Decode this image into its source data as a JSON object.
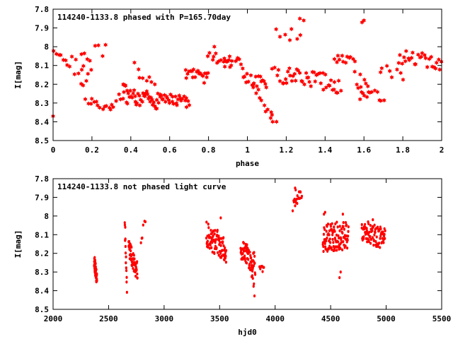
{
  "figure": {
    "background": "#ffffff",
    "point_color": "#ff0000"
  },
  "chart_data": [
    {
      "type": "scatter",
      "title": "114240-1133.8 phased with P=165.70day",
      "xlabel": "phase",
      "ylabel": "I[mag]",
      "xlim": [
        0,
        2
      ],
      "ylim": [
        8.5,
        7.8
      ],
      "y_inverted": true,
      "xticks": [
        "0",
        "0.2",
        "0.4",
        "0.6",
        "0.8",
        "1",
        "1.2",
        "1.4",
        "1.6",
        "1.8",
        "2"
      ],
      "yticks": [
        "7.8",
        "7.9",
        "8",
        "8.1",
        "8.2",
        "8.3",
        "8.4",
        "8.5"
      ],
      "grid": false,
      "legend": "none",
      "marker": "star",
      "color": "#ff0000",
      "segments": [
        {
          "x0": 0.0,
          "x1": 0.07,
          "y0": 8.04,
          "y1": 8.08,
          "n": 6,
          "amp": 0.03
        },
        {
          "x0": 0.07,
          "x1": 0.18,
          "y0": 8.08,
          "y1": 8.15,
          "n": 10,
          "amp": 0.05
        },
        {
          "x0": 0.15,
          "x1": 0.2,
          "y0": 8.03,
          "y1": 8.1,
          "n": 5,
          "amp": 0.03
        },
        {
          "x0": 0.22,
          "x1": 0.25,
          "y0": 7.99,
          "y1": 8.03,
          "n": 3,
          "amp": 0.02
        },
        {
          "x0": 0.14,
          "x1": 0.2,
          "y0": 8.2,
          "y1": 8.3,
          "n": 5,
          "amp": 0.03
        },
        {
          "x0": 0.2,
          "x1": 0.3,
          "y0": 8.3,
          "y1": 8.33,
          "n": 10,
          "amp": 0.02
        },
        {
          "x0": 0.3,
          "x1": 0.38,
          "y0": 8.3,
          "y1": 8.25,
          "n": 8,
          "amp": 0.03
        },
        {
          "x0": 0.36,
          "x1": 0.55,
          "y0": 8.25,
          "y1": 8.29,
          "n": 42,
          "amp": 0.05
        },
        {
          "x0": 0.42,
          "x1": 0.52,
          "y0": 8.12,
          "y1": 8.18,
          "n": 8,
          "amp": 0.04
        },
        {
          "x0": 0.55,
          "x1": 0.7,
          "y0": 8.27,
          "y1": 8.3,
          "n": 28,
          "amp": 0.03
        },
        {
          "x0": 0.68,
          "x1": 0.8,
          "y0": 8.14,
          "y1": 8.17,
          "n": 20,
          "amp": 0.03
        },
        {
          "x0": 0.8,
          "x1": 0.92,
          "y0": 8.03,
          "y1": 8.1,
          "n": 14,
          "amp": 0.03
        },
        {
          "x0": 0.88,
          "x1": 0.98,
          "y0": 8.07,
          "y1": 8.1,
          "n": 10,
          "amp": 0.03
        },
        {
          "x0": 0.98,
          "x1": 1.1,
          "y0": 8.17,
          "y1": 8.19,
          "n": 18,
          "amp": 0.03
        },
        {
          "x0": 1.03,
          "x1": 1.13,
          "y0": 8.2,
          "y1": 8.38,
          "n": 10,
          "amp": 0.03
        },
        {
          "x0": 1.13,
          "x1": 1.2,
          "y0": 8.12,
          "y1": 8.18,
          "n": 8,
          "amp": 0.04
        },
        {
          "x0": 1.15,
          "x1": 1.27,
          "y0": 7.9,
          "y1": 7.95,
          "n": 7,
          "amp": 0.04
        },
        {
          "x0": 1.2,
          "x1": 1.48,
          "y0": 8.14,
          "y1": 8.2,
          "n": 40,
          "amp": 0.05
        },
        {
          "x0": 1.45,
          "x1": 1.55,
          "y0": 8.05,
          "y1": 8.08,
          "n": 12,
          "amp": 0.03
        },
        {
          "x0": 1.55,
          "x1": 1.62,
          "y0": 8.15,
          "y1": 8.25,
          "n": 8,
          "amp": 0.05
        },
        {
          "x0": 1.58,
          "x1": 1.7,
          "y0": 8.22,
          "y1": 8.28,
          "n": 12,
          "amp": 0.04
        },
        {
          "x0": 1.68,
          "x1": 1.8,
          "y0": 8.12,
          "y1": 8.15,
          "n": 8,
          "amp": 0.03
        },
        {
          "x0": 1.78,
          "x1": 2.0,
          "y0": 8.05,
          "y1": 8.09,
          "n": 28,
          "amp": 0.04
        }
      ],
      "points": [
        {
          "x": 0.0,
          "y": 8.37
        },
        {
          "x": 0.27,
          "y": 7.99
        },
        {
          "x": 1.27,
          "y": 7.85
        },
        {
          "x": 1.29,
          "y": 7.86
        },
        {
          "x": 1.59,
          "y": 7.87
        },
        {
          "x": 1.6,
          "y": 7.86
        },
        {
          "x": 1.58,
          "y": 8.28
        },
        {
          "x": 1.13,
          "y": 8.4
        },
        {
          "x": 1.15,
          "y": 8.4
        },
        {
          "x": 1.12,
          "y": 8.38
        },
        {
          "x": 0.95,
          "y": 8.06
        },
        {
          "x": 0.83,
          "y": 8.0
        }
      ]
    },
    {
      "type": "scatter",
      "title": "114240-1133.8 not phased light curve",
      "xlabel": "hjd0",
      "ylabel": "I[mag]",
      "xlim": [
        2000,
        5500
      ],
      "ylim": [
        8.5,
        7.8
      ],
      "y_inverted": true,
      "xticks": [
        "2000",
        "2500",
        "3000",
        "3500",
        "4000",
        "4500",
        "5000",
        "5500"
      ],
      "yticks": [
        "7.8",
        "7.9",
        "8",
        "8.1",
        "8.2",
        "8.3",
        "8.4",
        "8.5"
      ],
      "grid": false,
      "legend": "none",
      "marker": "dot",
      "color": "#ff0000",
      "segments": [
        {
          "x0": 2370,
          "x1": 2395,
          "y0": 8.24,
          "y1": 8.34,
          "n": 40,
          "amp": 0.04
        },
        {
          "x0": 2645,
          "x1": 2665,
          "y0": 8.07,
          "y1": 8.37,
          "n": 14,
          "amp": 0.05
        },
        {
          "x0": 2680,
          "x1": 2760,
          "y0": 8.17,
          "y1": 8.3,
          "n": 55,
          "amp": 0.05
        },
        {
          "x0": 2790,
          "x1": 2830,
          "y0": 8.16,
          "y1": 8.02,
          "n": 6,
          "amp": 0.03
        },
        {
          "x0": 3380,
          "x1": 3560,
          "y0": 8.1,
          "y1": 8.18,
          "n": 90,
          "amp": 0.07
        },
        {
          "x0": 3690,
          "x1": 3820,
          "y0": 8.17,
          "y1": 8.26,
          "n": 70,
          "amp": 0.06
        },
        {
          "x0": 3790,
          "x1": 3815,
          "y0": 8.3,
          "y1": 8.4,
          "n": 6,
          "amp": 0.03
        },
        {
          "x0": 3860,
          "x1": 3900,
          "y0": 8.25,
          "y1": 8.3,
          "n": 8,
          "amp": 0.03
        },
        {
          "x0": 4160,
          "x1": 4240,
          "y0": 7.95,
          "y1": 7.87,
          "n": 18,
          "amp": 0.03
        },
        {
          "x0": 4430,
          "x1": 4660,
          "y0": 8.12,
          "y1": 8.1,
          "n": 110,
          "amp": 0.08
        },
        {
          "x0": 4780,
          "x1": 4990,
          "y0": 8.08,
          "y1": 8.12,
          "n": 90,
          "amp": 0.06
        }
      ],
      "points": [
        {
          "x": 4580,
          "y": 8.33
        },
        {
          "x": 4590,
          "y": 8.3
        },
        {
          "x": 4440,
          "y": 7.99
        },
        {
          "x": 4450,
          "y": 7.98
        },
        {
          "x": 4180,
          "y": 7.85
        },
        {
          "x": 4185,
          "y": 7.86
        },
        {
          "x": 2650,
          "y": 8.06
        },
        {
          "x": 3510,
          "y": 8.01
        },
        {
          "x": 4880,
          "y": 8.02
        },
        {
          "x": 4610,
          "y": 7.99
        }
      ]
    }
  ]
}
